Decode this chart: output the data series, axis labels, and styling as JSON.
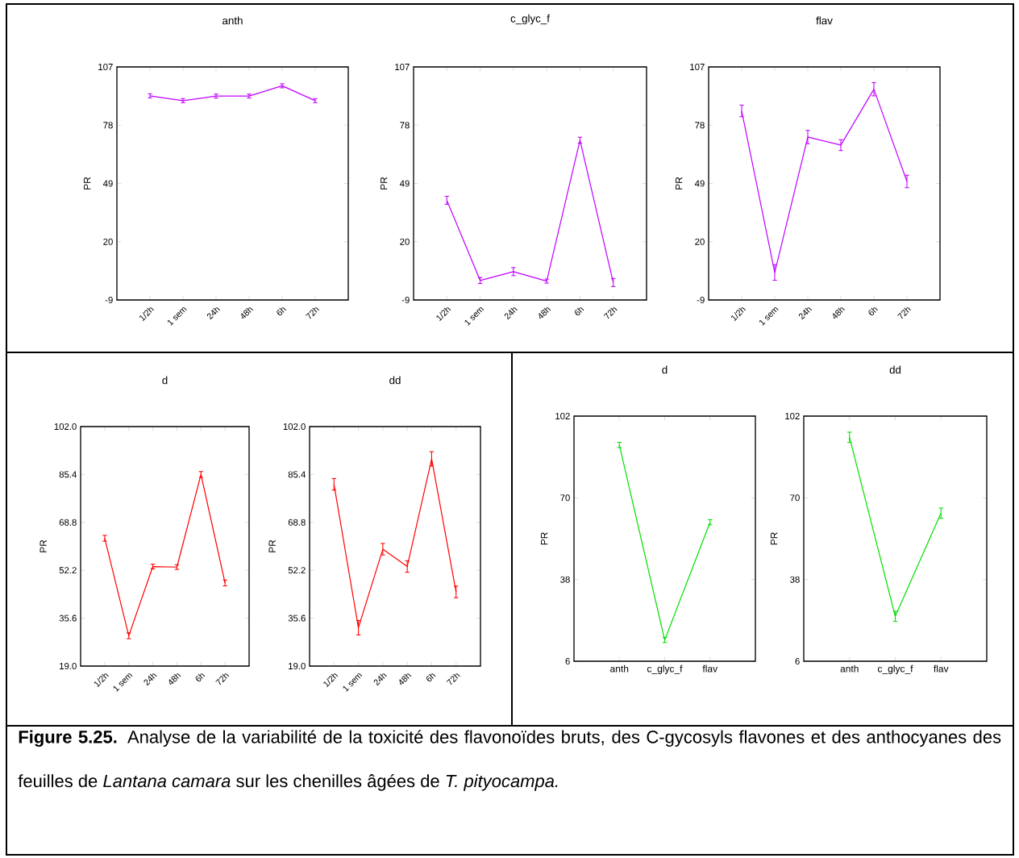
{
  "chart_data": [
    {
      "type": "line",
      "title": "anth",
      "ylabel": "PR",
      "categories": [
        "1/2h",
        "1 sem",
        "24h",
        "48h",
        "6h",
        "72h"
      ],
      "color": "#c000ff",
      "values": [
        92.6,
        90.2,
        92.5,
        92.5,
        97.6,
        90.2
      ],
      "errors": [
        1,
        1,
        1,
        1,
        1,
        1
      ],
      "ylim": [
        -9,
        107
      ],
      "yticks": [
        -9,
        20,
        49,
        78,
        107
      ]
    },
    {
      "type": "line",
      "title": "c_glyc_f",
      "ylabel": "PR",
      "categories": [
        "1/2h",
        "1 sem",
        "24h",
        "48h",
        "6h",
        "72h"
      ],
      "color": "#c000ff",
      "values": [
        40.6,
        0.7,
        5.1,
        0.4,
        70.5,
        -0.3
      ],
      "errors": [
        2,
        1.5,
        2,
        1,
        1.5,
        2
      ],
      "ylim": [
        -9,
        107
      ],
      "yticks": [
        -9,
        20,
        49,
        78,
        107
      ]
    },
    {
      "type": "line",
      "title": "flav",
      "ylabel": "PR",
      "categories": [
        "1/2h",
        "1 sem",
        "24h",
        "48h",
        "6h",
        "72h"
      ],
      "color": "#c000ff",
      "values": [
        85.1,
        4.7,
        72.1,
        68.1,
        95.9,
        50.0
      ],
      "errors": [
        2.9,
        3.9,
        3.3,
        2.7,
        3.3,
        3.1
      ],
      "ylim": [
        -9,
        107
      ],
      "yticks": [
        -9,
        20,
        49,
        78,
        107
      ]
    },
    {
      "type": "line",
      "title": "d",
      "ylabel": "PR",
      "categories": [
        "1/2h",
        "1 sem",
        "24h",
        "48h",
        "6h",
        "72h"
      ],
      "color": "#ff0000",
      "values": [
        63.3,
        29.5,
        53.5,
        53.3,
        85.4,
        47.8
      ],
      "errors": [
        1,
        1,
        0.8,
        0.8,
        1,
        1
      ],
      "ylim": [
        19,
        102
      ],
      "yticks": [
        {
          "value": 19,
          "label": "19.0"
        },
        {
          "value": 35.6,
          "label": "35.6"
        },
        {
          "value": 52.2,
          "label": "52.2"
        },
        {
          "value": 68.8,
          "label": "68.8"
        },
        {
          "value": 85.4,
          "label": "85.4"
        },
        {
          "value": 102,
          "label": "102.0"
        }
      ]
    },
    {
      "type": "line",
      "title": "dd",
      "ylabel": "PR",
      "categories": [
        "1/2h",
        "1 sem",
        "24h",
        "48h",
        "6h",
        "72h"
      ],
      "color": "#ff0000",
      "values": [
        82.0,
        32.3,
        59.5,
        53.5,
        90.8,
        44.7
      ],
      "errors": [
        2,
        2.5,
        2,
        2,
        2.5,
        2
      ],
      "ylim": [
        19,
        102
      ],
      "yticks": [
        {
          "value": 19,
          "label": "19.0"
        },
        {
          "value": 35.6,
          "label": "35.6"
        },
        {
          "value": 52.2,
          "label": "52.2"
        },
        {
          "value": 68.8,
          "label": "68.8"
        },
        {
          "value": 85.4,
          "label": "85.4"
        },
        {
          "value": 102,
          "label": "102.0"
        }
      ]
    },
    {
      "type": "line",
      "title": "d",
      "ylabel": "PR",
      "categories": [
        "anth",
        "c_glyc_f",
        "flav"
      ],
      "color": "#00e000",
      "values": [
        90.7,
        14.3,
        60.4
      ],
      "errors": [
        1,
        1,
        1
      ],
      "ylim": [
        6,
        102
      ],
      "yticks": [
        6,
        38,
        70,
        102
      ]
    },
    {
      "type": "line",
      "title": "dd",
      "ylabel": "PR",
      "categories": [
        "anth",
        "c_glyc_f",
        "flav"
      ],
      "color": "#00e000",
      "values": [
        93.7,
        23.6,
        64.0
      ],
      "errors": [
        2,
        2,
        2
      ],
      "ylim": [
        6,
        102
      ],
      "yticks": [
        6,
        38,
        70,
        102
      ],
      "annotations": [
        "**Figure 5.25.** Analyse de la variabilité de la toxicité des flavonoïdes bruts, des C-gycosyls flavones et des anthocyanes des feuilles de *Lantana camara* sur les chenilles âgées de *T. pityocampa.*"
      ]
    }
  ]
}
